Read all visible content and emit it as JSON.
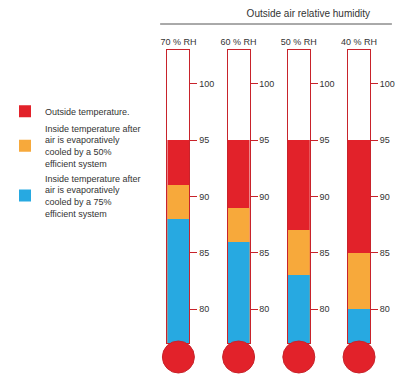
{
  "chart_data": {
    "type": "bar",
    "title": "Outside air relative humidity",
    "categories": [
      "70 % RH",
      "60 % RH",
      "50 % RH",
      "40 % RH"
    ],
    "series": [
      {
        "name": "Outside temperature.",
        "color": "#e2222a",
        "values": [
          95,
          95,
          95,
          95
        ]
      },
      {
        "name": "Inside temperature after air is evaporatively cooled by a 50% efficient system",
        "color": "#f7a93b",
        "values": [
          91,
          89,
          87,
          85
        ]
      },
      {
        "name": "Inside temperature after air is evaporatively cooled by a 75% efficient system",
        "color": "#27a9e1",
        "values": [
          88,
          86,
          83,
          80
        ]
      }
    ],
    "ylim": [
      77,
      103
    ],
    "yticks": [
      80,
      85,
      90,
      95,
      100
    ],
    "stacked": false,
    "grid": false,
    "legend": "left"
  }
}
